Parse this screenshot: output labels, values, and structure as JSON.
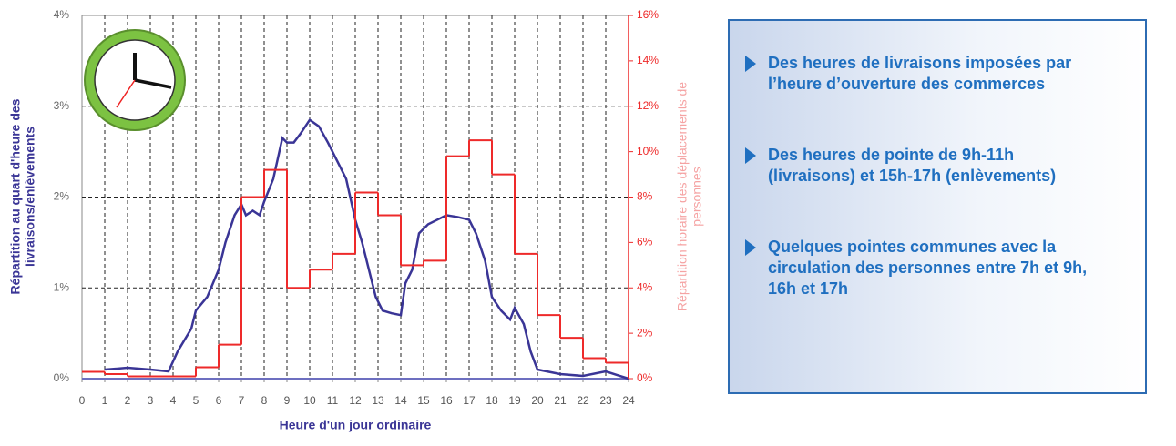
{
  "chart_data": {
    "type": "line",
    "xlabel": "Heure d'un jour ordinaire",
    "ylabel": [
      "Répartition au quart d'heure des",
      "livraisons/enlèvements"
    ],
    "y2label": [
      "Répartition horaire des déplacements de",
      "personnes"
    ],
    "xlim": [
      0,
      24
    ],
    "xticks": [
      0,
      1,
      2,
      3,
      4,
      5,
      6,
      7,
      8,
      9,
      10,
      11,
      12,
      13,
      14,
      15,
      16,
      17,
      18,
      19,
      20,
      21,
      22,
      23,
      24
    ],
    "ylim": [
      0,
      4
    ],
    "yticks": [
      {
        "value": 0,
        "label": "0%"
      },
      {
        "value": 1,
        "label": "1%"
      },
      {
        "value": 2,
        "label": "2%"
      },
      {
        "value": 3,
        "label": "3%"
      },
      {
        "value": 4,
        "label": "4%"
      }
    ],
    "y2lim": [
      0,
      16
    ],
    "y2ticks": [
      {
        "value": 0,
        "label": "0%"
      },
      {
        "value": 2,
        "label": "2%"
      },
      {
        "value": 4,
        "label": "4%"
      },
      {
        "value": 6,
        "label": "6%"
      },
      {
        "value": 8,
        "label": "8%"
      },
      {
        "value": 10,
        "label": "10%"
      },
      {
        "value": 12,
        "label": "12%"
      },
      {
        "value": 14,
        "label": "14%"
      },
      {
        "value": 16,
        "label": "16%"
      }
    ],
    "grid": true,
    "series": [
      {
        "color": "#3a3596",
        "x": [
          1,
          2,
          3,
          3.8,
          4.2,
          4.8,
          5,
          5.5,
          6,
          6.3,
          6.7,
          7,
          7.2,
          7.5,
          7.8,
          8,
          8.4,
          8.8,
          9,
          9.3,
          9.6,
          10,
          10.4,
          10.8,
          11.2,
          11.6,
          12,
          12.3,
          12.6,
          12.9,
          13.2,
          13.6,
          14,
          14.2,
          14.5,
          14.8,
          15.2,
          15.6,
          16,
          16.5,
          17,
          17.3,
          17.7,
          18,
          18.4,
          18.8,
          19,
          19.4,
          19.7,
          20,
          21,
          22,
          23,
          23.5,
          24
        ],
        "values": [
          0.1,
          0.12,
          0.1,
          0.08,
          0.3,
          0.55,
          0.75,
          0.9,
          1.2,
          1.5,
          1.8,
          1.92,
          1.8,
          1.85,
          1.8,
          1.95,
          2.2,
          2.65,
          2.6,
          2.6,
          2.7,
          2.85,
          2.78,
          2.6,
          2.4,
          2.2,
          1.75,
          1.5,
          1.2,
          0.9,
          0.75,
          0.72,
          0.7,
          1.05,
          1.2,
          1.6,
          1.7,
          1.75,
          1.8,
          1.78,
          1.75,
          1.6,
          1.3,
          0.9,
          0.75,
          0.65,
          0.78,
          0.6,
          0.3,
          0.1,
          0.05,
          0.03,
          0.08,
          0.04,
          0
        ]
      },
      {
        "color": "#ee2a2a",
        "axis": "y2",
        "step": "post",
        "x": [
          0,
          1,
          2,
          3,
          4,
          5,
          6,
          7,
          8,
          9,
          10,
          11,
          12,
          13,
          14,
          15,
          16,
          17,
          18,
          19,
          20,
          21,
          22,
          23
        ],
        "values": [
          0.3,
          0.2,
          0.1,
          0.1,
          0.1,
          0.5,
          1.5,
          8,
          9.2,
          4,
          4.8,
          5.5,
          8.2,
          7.2,
          5,
          5.2,
          9.8,
          10.5,
          9,
          5.5,
          2.8,
          1.8,
          0.9,
          0.7
        ]
      }
    ]
  },
  "panel": {
    "bullets": [
      [
        "Des heures de livraisons imposées par",
        "l’heure d’ouverture des commerces"
      ],
      [
        "Des heures de pointe de 9h-11h",
        "(livraisons) et 15h-17h (enlèvements)"
      ],
      [
        "Quelques pointes communes avec la",
        "circulation des personnes entre 7h et 9h,",
        "16h et 17h"
      ]
    ]
  }
}
